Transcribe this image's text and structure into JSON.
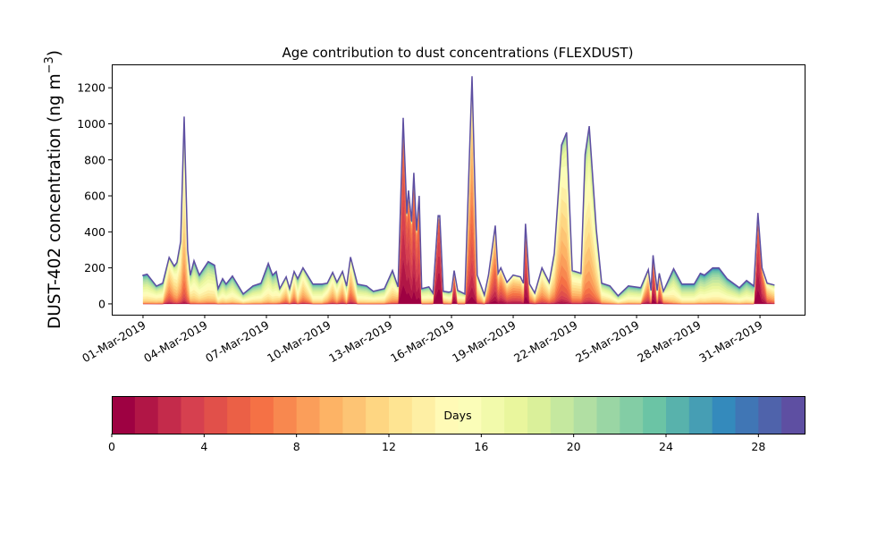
{
  "chart_data": {
    "type": "area",
    "stacked": true,
    "title": "Age contribution to dust concentrations (FLEXDUST)",
    "ylabel": "DUST-402 concentration (ng m",
    "ylabel_sup": "−3",
    "ylabel_close": ")",
    "xlabel": "",
    "x_unit": "days since 01-Mar-2019",
    "xlim": [
      -1.52,
      32.17
    ],
    "ylim": [
      -60,
      1330
    ],
    "yticks": [
      0,
      200,
      400,
      600,
      800,
      1000,
      1200
    ],
    "xticks": [
      {
        "day": 0,
        "label": "01-Mar-2019"
      },
      {
        "day": 3,
        "label": "04-Mar-2019"
      },
      {
        "day": 6,
        "label": "07-Mar-2019"
      },
      {
        "day": 9,
        "label": "10-Mar-2019"
      },
      {
        "day": 12,
        "label": "13-Mar-2019"
      },
      {
        "day": 15,
        "label": "16-Mar-2019"
      },
      {
        "day": 18,
        "label": "19-Mar-2019"
      },
      {
        "day": 21,
        "label": "22-Mar-2019"
      },
      {
        "day": 24,
        "label": "25-Mar-2019"
      },
      {
        "day": 27,
        "label": "28-Mar-2019"
      },
      {
        "day": 30,
        "label": "31-Mar-2019"
      }
    ],
    "age_bins": 30,
    "x": [
      0,
      0.2,
      0.65,
      0.96,
      1.27,
      1.52,
      1.65,
      1.83,
      2.0,
      2.17,
      2.3,
      2.48,
      2.74,
      3.17,
      3.48,
      3.65,
      3.87,
      4.04,
      4.35,
      4.87,
      5.35,
      5.74,
      6.09,
      6.3,
      6.48,
      6.65,
      6.96,
      7.13,
      7.35,
      7.52,
      7.78,
      8.26,
      8.7,
      8.96,
      9.22,
      9.43,
      9.7,
      9.9,
      10.09,
      10.43,
      10.87,
      11.2,
      11.74,
      12.13,
      12.4,
      12.65,
      12.83,
      12.91,
      13.06,
      13.17,
      13.3,
      13.43,
      13.55,
      13.9,
      14.1,
      14.35,
      14.43,
      14.6,
      14.87,
      15.0,
      15.13,
      15.3,
      15.65,
      16.0,
      16.25,
      16.6,
      16.8,
      17.13,
      17.27,
      17.4,
      17.7,
      18.0,
      18.35,
      18.5,
      18.6,
      18.8,
      19.05,
      19.4,
      19.75,
      20.0,
      20.35,
      20.6,
      20.87,
      21.3,
      21.5,
      21.7,
      22.04,
      22.3,
      22.7,
      23.1,
      23.6,
      24.2,
      24.57,
      24.7,
      24.8,
      25.0,
      25.1,
      25.3,
      25.8,
      26.2,
      26.8,
      27.1,
      27.3,
      27.7,
      28.0,
      28.4,
      29.0,
      29.35,
      29.7,
      29.9,
      30.1,
      30.35,
      30.7
    ],
    "total": [
      159,
      165,
      99,
      115,
      258,
      210,
      230,
      347,
      1040,
      300,
      160,
      240,
      160,
      235,
      215,
      85,
      140,
      110,
      155,
      55,
      100,
      115,
      225,
      160,
      180,
      85,
      150,
      85,
      180,
      140,
      200,
      110,
      110,
      115,
      175,
      120,
      180,
      100,
      260,
      110,
      100,
      70,
      85,
      185,
      95,
      1033,
      505,
      630,
      460,
      728,
      410,
      600,
      85,
      95,
      60,
      490,
      490,
      70,
      65,
      70,
      185,
      75,
      55,
      1264,
      160,
      50,
      160,
      435,
      170,
      200,
      120,
      160,
      150,
      115,
      445,
      110,
      60,
      200,
      120,
      280,
      882,
      952,
      185,
      170,
      830,
      987,
      415,
      115,
      100,
      45,
      100,
      90,
      190,
      75,
      270,
      75,
      170,
      70,
      195,
      110,
      110,
      170,
      160,
      200,
      200,
      140,
      90,
      130,
      100,
      505,
      200,
      115,
      105
    ],
    "mean_age": [
      17,
      17,
      16,
      16,
      10,
      12,
      13,
      12,
      12,
      12,
      15,
      16,
      16,
      16,
      16,
      17,
      17,
      17,
      17,
      17,
      17,
      17,
      17,
      17,
      17,
      14,
      12,
      15,
      11,
      16,
      12,
      17,
      17,
      14,
      12,
      14,
      11,
      15,
      10,
      17,
      17,
      16,
      16,
      14,
      12,
      3,
      3,
      3,
      4,
      3,
      4,
      4,
      16,
      16,
      14,
      2,
      2,
      14,
      15,
      15,
      3,
      15,
      14,
      7,
      12,
      15,
      9,
      6,
      7,
      6,
      8,
      8,
      8,
      9,
      3,
      10,
      12,
      11,
      12,
      12,
      11,
      12,
      12,
      12,
      13,
      13,
      13,
      15,
      16,
      17,
      17,
      17,
      8,
      12,
      3,
      12,
      6,
      12,
      17,
      18,
      18,
      18,
      18,
      18,
      18,
      18,
      18,
      18,
      18,
      2,
      4,
      10,
      12
    ]
  },
  "colorbar": {
    "label": "Days",
    "range": [
      0,
      30
    ],
    "ticks": [
      "0",
      "4",
      "8",
      "12",
      "16",
      "20",
      "24",
      "28"
    ],
    "colormap_anchors": [
      "#9e0142",
      "#d53e4f",
      "#f46d43",
      "#fdae61",
      "#fee08b",
      "#ffffbf",
      "#e6f598",
      "#abdda4",
      "#66c2a5",
      "#3288bd",
      "#5e4fa2"
    ]
  }
}
